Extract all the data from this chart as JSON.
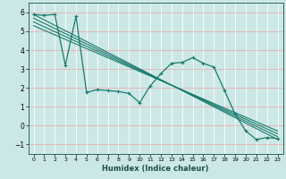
{
  "xlabel": "Humidex (Indice chaleur)",
  "bg_color": "#cce8e6",
  "grid_color_major": "#f0c8c8",
  "grid_color_minor": "#ffffff",
  "line_color": "#1a7a6e",
  "xlim": [
    -0.5,
    23.5
  ],
  "ylim": [
    -1.5,
    6.5
  ],
  "xticks": [
    0,
    1,
    2,
    3,
    4,
    5,
    6,
    7,
    8,
    9,
    10,
    11,
    12,
    13,
    14,
    15,
    16,
    17,
    18,
    19,
    20,
    21,
    22,
    23
  ],
  "yticks": [
    -1,
    0,
    1,
    2,
    3,
    4,
    5,
    6
  ],
  "series": [
    [
      0,
      5.9
    ],
    [
      1,
      5.85
    ],
    [
      2,
      5.9
    ],
    [
      3,
      3.2
    ],
    [
      4,
      5.8
    ],
    [
      5,
      1.75
    ],
    [
      6,
      1.9
    ],
    [
      7,
      1.85
    ],
    [
      8,
      1.8
    ],
    [
      9,
      1.7
    ],
    [
      10,
      1.2
    ],
    [
      11,
      2.1
    ],
    [
      12,
      2.75
    ],
    [
      13,
      3.3
    ],
    [
      14,
      3.35
    ],
    [
      15,
      3.6
    ],
    [
      16,
      3.3
    ],
    [
      17,
      3.1
    ],
    [
      18,
      1.85
    ],
    [
      19,
      0.6
    ],
    [
      20,
      -0.3
    ],
    [
      21,
      -0.75
    ],
    [
      22,
      -0.65
    ],
    [
      23,
      -0.7
    ]
  ],
  "regression_lines": [
    [
      [
        0,
        5.9
      ],
      [
        23,
        -0.75
      ]
    ],
    [
      [
        0,
        5.7
      ],
      [
        23,
        -0.6
      ]
    ],
    [
      [
        0,
        5.5
      ],
      [
        23,
        -0.45
      ]
    ],
    [
      [
        0,
        5.3
      ],
      [
        23,
        -0.3
      ]
    ]
  ]
}
